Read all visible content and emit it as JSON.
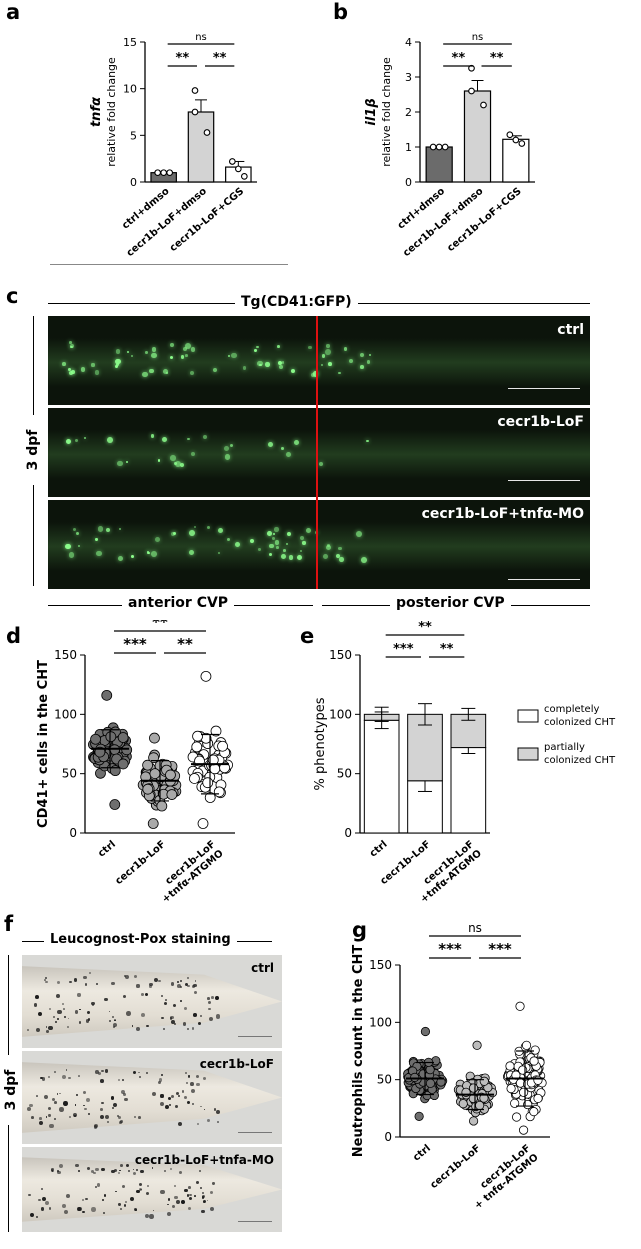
{
  "panels": {
    "a": "a",
    "b": "b",
    "c": "c",
    "d": "d",
    "e": "e",
    "f": "f",
    "g": "g"
  },
  "panel_c": {
    "header": "Tg(CD41:GFP)",
    "side_label": "3 dpf",
    "rows": [
      "ctrl",
      "cecr1b-LoF",
      "cecr1b-LoF+tnfα-MO"
    ],
    "bottom_left": "anterior CVP",
    "bottom_right": "posterior CVP"
  },
  "panel_f": {
    "header": "Leucognost-Pox staining",
    "side_label": "3 dpf",
    "rows": [
      "ctrl",
      "cecr1b-LoF",
      "cecr1b-LoF+tnfa-MO"
    ]
  },
  "chart_data": [
    {
      "id": "a",
      "type": "bar",
      "ylabel_gene": "tnfα",
      "ylabel": "relative fold change",
      "categories": [
        "ctrl+dmso",
        "cecr1b-LoF+dmso",
        "cecr1b-LoF+CGS"
      ],
      "values": [
        1.0,
        7.5,
        1.6
      ],
      "errors": [
        0.05,
        1.3,
        0.6
      ],
      "points": [
        [
          1.0,
          1.0,
          1.0
        ],
        [
          9.8,
          7.5,
          5.3
        ],
        [
          2.2,
          1.4,
          0.6
        ]
      ],
      "bar_colors": [
        "#6b6b6b",
        "#d3d3d3",
        "#ffffff"
      ],
      "ylim": [
        0,
        15
      ],
      "yticks": [
        0,
        5,
        10,
        15
      ],
      "significance": [
        {
          "from": 0,
          "to": 1,
          "label": "**",
          "level": 1
        },
        {
          "from": 1,
          "to": 2,
          "label": "**",
          "level": 1
        },
        {
          "from": 0,
          "to": 2,
          "label": "ns",
          "level": 2
        }
      ]
    },
    {
      "id": "b",
      "type": "bar",
      "ylabel_gene": "il1β",
      "ylabel": "relative fold change",
      "categories": [
        "ctrl+dmso",
        "cecr1b-LoF+dmso",
        "cecr1b-LoF+CGS"
      ],
      "values": [
        1.0,
        2.6,
        1.22
      ],
      "errors": [
        0.02,
        0.3,
        0.1
      ],
      "points": [
        [
          1.0,
          1.0,
          1.0
        ],
        [
          3.25,
          2.6,
          2.2
        ],
        [
          1.35,
          1.2,
          1.1
        ]
      ],
      "bar_colors": [
        "#6b6b6b",
        "#d3d3d3",
        "#ffffff"
      ],
      "ylim": [
        0,
        4
      ],
      "yticks": [
        0,
        1,
        2,
        3,
        4
      ],
      "significance": [
        {
          "from": 0,
          "to": 1,
          "label": "**",
          "level": 1
        },
        {
          "from": 1,
          "to": 2,
          "label": "**",
          "level": 1
        },
        {
          "from": 0,
          "to": 2,
          "label": "ns",
          "level": 2
        }
      ]
    },
    {
      "id": "d",
      "type": "scatter",
      "ylabel": "CD41+ cells in the CHT",
      "categories": [
        "ctrl",
        "cecr1b-LoF",
        "cecr1b-LoF\n+tnfα-ATGMO"
      ],
      "means": [
        71,
        44,
        58
      ],
      "sds": [
        16,
        17,
        25
      ],
      "ranges": [
        [
          24,
          116
        ],
        [
          8,
          80
        ],
        [
          8,
          132
        ]
      ],
      "n": [
        80,
        75,
        60
      ],
      "point_fills": [
        "#6e6e6e",
        "#a9a9a9",
        "#ffffff"
      ],
      "ylim": [
        0,
        150
      ],
      "yticks": [
        0,
        50,
        100,
        150
      ],
      "significance": [
        {
          "from": 0,
          "to": 1,
          "label": "***",
          "level": 1
        },
        {
          "from": 1,
          "to": 2,
          "label": "**",
          "level": 1
        },
        {
          "from": 0,
          "to": 2,
          "label": "**",
          "level": 2
        }
      ]
    },
    {
      "id": "e",
      "type": "bar",
      "ylabel": "% phenotypes",
      "categories": [
        "ctrl",
        "cecr1b-LoF",
        "cecr1b-LoF\n+tnfα-ATGMO"
      ],
      "series": [
        {
          "name": "completely colonized CHT",
          "values": [
            95,
            44,
            72
          ],
          "errors": [
            7,
            9,
            5
          ],
          "color": "#ffffff"
        },
        {
          "name": "partially colonized CHT",
          "values": [
            5,
            56,
            28
          ],
          "errors": [
            6,
            9,
            5
          ],
          "color": "#d3d3d3"
        }
      ],
      "ylim": [
        0,
        150
      ],
      "yticks": [
        0,
        50,
        100,
        150
      ],
      "legend": "right",
      "significance": [
        {
          "from": 0,
          "to": 1,
          "label": "***",
          "level": 1
        },
        {
          "from": 1,
          "to": 2,
          "label": "**",
          "level": 1
        },
        {
          "from": 0,
          "to": 2,
          "label": "**",
          "level": 2
        }
      ]
    },
    {
      "id": "g",
      "type": "scatter",
      "ylabel": "Neutrophils count in the CHT",
      "categories": [
        "ctrl",
        "cecr1b-LoF",
        "cecr1b-LoF\n+ tnfα-ATGMO"
      ],
      "means": [
        51,
        37,
        51
      ],
      "sds": [
        14,
        13,
        24
      ],
      "ranges": [
        [
          18,
          92
        ],
        [
          14,
          80
        ],
        [
          6,
          114
        ]
      ],
      "n": [
        110,
        110,
        110
      ],
      "point_fills": [
        "#6e6e6e",
        "#bdbdbd",
        "#ffffff"
      ],
      "ylim": [
        0,
        150
      ],
      "yticks": [
        0,
        50,
        100,
        150
      ],
      "significance": [
        {
          "from": 0,
          "to": 1,
          "label": "***",
          "level": 1
        },
        {
          "from": 1,
          "to": 2,
          "label": "***",
          "level": 1
        },
        {
          "from": 0,
          "to": 2,
          "label": "ns",
          "level": 2
        }
      ]
    }
  ]
}
